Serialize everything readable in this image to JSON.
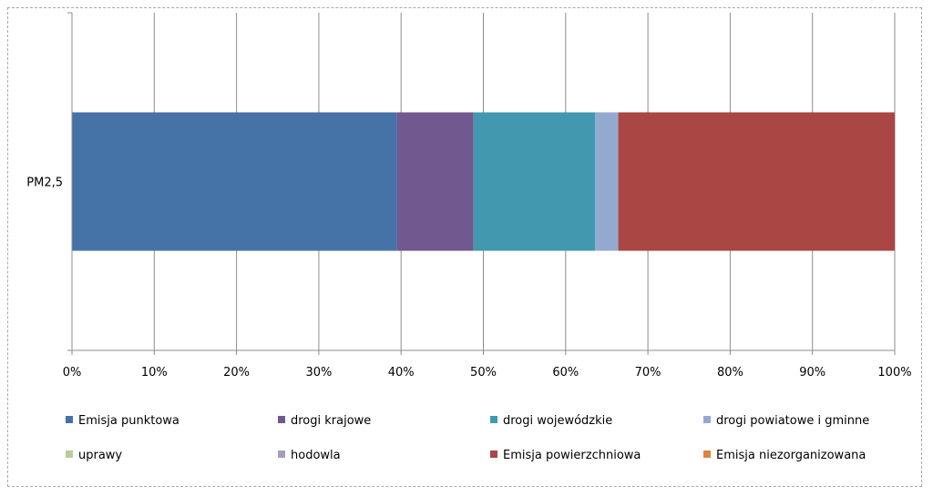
{
  "chart_data": {
    "type": "bar",
    "orientation": "horizontal",
    "stacked": "percent",
    "categories": [
      "PM2,5"
    ],
    "series": [
      {
        "name": "Emisja punktowa",
        "color": "#4572A7",
        "values": [
          39.5
        ]
      },
      {
        "name": "drogi krajowe",
        "color": "#71588F",
        "values": [
          9.3
        ]
      },
      {
        "name": "drogi wojewódzkie",
        "color": "#4198AF",
        "values": [
          14.8
        ]
      },
      {
        "name": "drogi powiatowe i gminne",
        "color": "#93A9CF",
        "values": [
          2.8
        ]
      },
      {
        "name": "uprawy",
        "color": "#B9CD96",
        "values": [
          0.0
        ]
      },
      {
        "name": "hodowla",
        "color": "#A99BBD",
        "values": [
          0.0
        ]
      },
      {
        "name": "Emisja powierzchniowa",
        "color": "#AA4643",
        "values": [
          33.6
        ]
      },
      {
        "name": "Emisja niezorganizowana",
        "color": "#DB843D",
        "values": [
          0.0
        ]
      }
    ],
    "xlim": [
      0,
      100
    ],
    "xticks": [
      "0%",
      "10%",
      "20%",
      "30%",
      "40%",
      "50%",
      "60%",
      "70%",
      "80%",
      "90%",
      "100%"
    ],
    "grid": true,
    "legend_position": "bottom"
  }
}
